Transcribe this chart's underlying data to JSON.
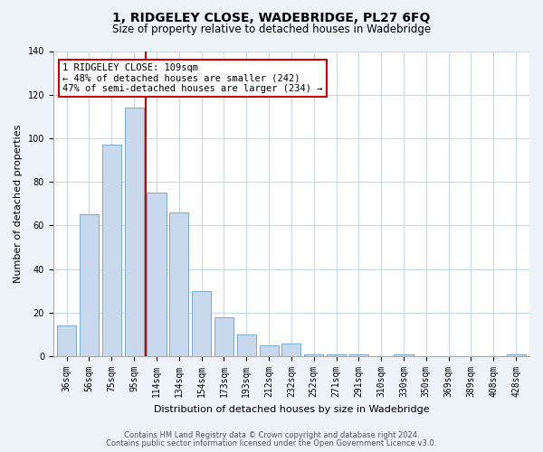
{
  "title": "1, RIDGELEY CLOSE, WADEBRIDGE, PL27 6FQ",
  "subtitle": "Size of property relative to detached houses in Wadebridge",
  "xlabel": "Distribution of detached houses by size in Wadebridge",
  "ylabel": "Number of detached properties",
  "categories": [
    "36sqm",
    "56sqm",
    "75sqm",
    "95sqm",
    "114sqm",
    "134sqm",
    "154sqm",
    "173sqm",
    "193sqm",
    "212sqm",
    "232sqm",
    "252sqm",
    "271sqm",
    "291sqm",
    "310sqm",
    "330sqm",
    "350sqm",
    "369sqm",
    "389sqm",
    "408sqm",
    "428sqm"
  ],
  "bar_heights": [
    14,
    65,
    97,
    114,
    75,
    66,
    30,
    18,
    10,
    5,
    6,
    1,
    1,
    1,
    0,
    1,
    0,
    0,
    0,
    0,
    1
  ],
  "bar_color": "#c8d9ee",
  "bar_edge_color": "#7aa8cc",
  "grid_color": "#c8d9ee",
  "vline_color": "#cc0000",
  "vline_index": 3.5,
  "annotation_title": "1 RIDGELEY CLOSE: 109sqm",
  "annotation_line1": "← 48% of detached houses are smaller (242)",
  "annotation_line2": "47% of semi-detached houses are larger (234) →",
  "annotation_box_color": "#ffffff",
  "annotation_box_edge": "#cc0000",
  "ylim": [
    0,
    140
  ],
  "yticks": [
    0,
    20,
    40,
    60,
    80,
    100,
    120,
    140
  ],
  "footer1": "Contains HM Land Registry data © Crown copyright and database right 2024.",
  "footer2": "Contains public sector information licensed under the Open Government Licence v3.0.",
  "bg_color": "#eef3f9",
  "plot_bg_color": "#ffffff",
  "title_fontsize": 10,
  "subtitle_fontsize": 8.5,
  "ylabel_fontsize": 8,
  "xlabel_fontsize": 8,
  "tick_fontsize": 7,
  "footer_fontsize": 6
}
